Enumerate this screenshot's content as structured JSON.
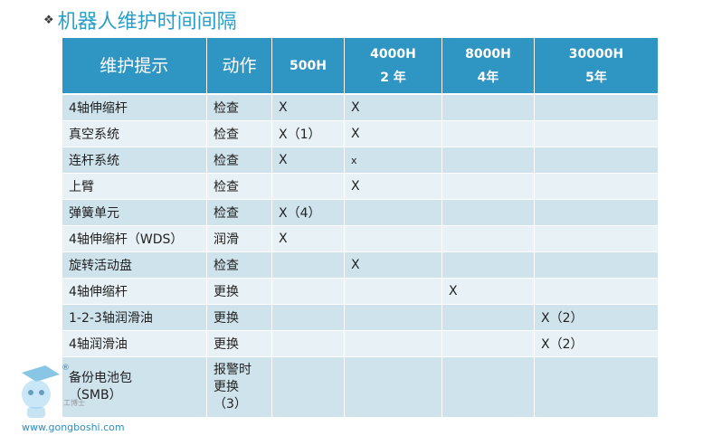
{
  "title": "机器人维护时间间隔",
  "bullet": "❖",
  "headers": [
    {
      "lines": [
        "维护提示"
      ],
      "big": true
    },
    {
      "lines": [
        "动作"
      ],
      "big": true
    },
    {
      "lines": [
        "500H"
      ],
      "big": false
    },
    {
      "lines": [
        "4000H",
        "2 年"
      ],
      "big": false
    },
    {
      "lines": [
        "8000H",
        "4年"
      ],
      "big": false
    },
    {
      "lines": [
        "30000H",
        "5年"
      ],
      "big": false
    }
  ],
  "rows": [
    {
      "item": "4轴伸缩杆",
      "action": "检查",
      "h500": "X",
      "h4000": "X",
      "h8000": "",
      "h30000": ""
    },
    {
      "item": "真空系统",
      "action": "检查",
      "h500": "X（1）",
      "h4000": "X",
      "h8000": "",
      "h30000": ""
    },
    {
      "item": "连杆系统",
      "action": "检查",
      "h500": "X",
      "h4000": "x",
      "h8000": "",
      "h30000": ""
    },
    {
      "item": "上臂",
      "action": "检查",
      "h500": "",
      "h4000": "X",
      "h8000": "",
      "h30000": ""
    },
    {
      "item": "弹簧单元",
      "action": "检查",
      "h500": "X（4）",
      "h4000": "",
      "h8000": "",
      "h30000": ""
    },
    {
      "item": "4轴伸缩杆（WDS）",
      "action": "润滑",
      "h500": "X",
      "h4000": "",
      "h8000": "",
      "h30000": ""
    },
    {
      "item": "旋转活动盘",
      "action": "检查",
      "h500": "",
      "h4000": "X",
      "h8000": "",
      "h30000": ""
    },
    {
      "item": "4轴伸缩杆",
      "action": "更换",
      "h500": "",
      "h4000": "",
      "h8000": "X",
      "h30000": ""
    },
    {
      "item": "1-2-3轴润滑油",
      "action": "更换",
      "h500": "",
      "h4000": "",
      "h8000": "",
      "h30000": "X（2）"
    },
    {
      "item": "4轴润滑油",
      "action": "更换",
      "h500": "",
      "h4000": "",
      "h8000": "",
      "h30000": "X（2）"
    }
  ],
  "last_row": {
    "item_lines": [
      "备份电池包",
      "（SMB）"
    ],
    "action_lines": [
      "报警时",
      "更换",
      "（3）"
    ]
  },
  "watermark": {
    "url": "www.gongboshi.com",
    "reg": "®",
    "small": "工博士"
  }
}
